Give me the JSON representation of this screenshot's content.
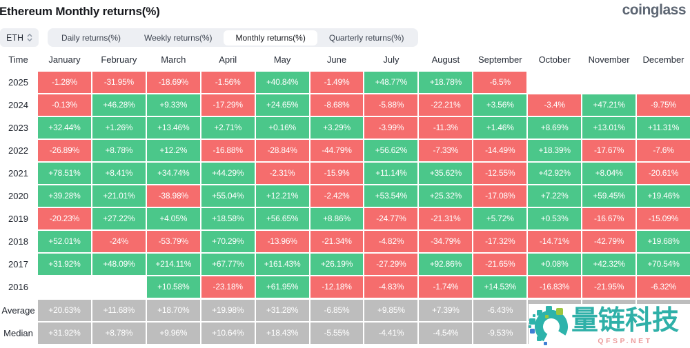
{
  "page": {
    "title": "Ethereum Monthly returns(%)",
    "brand": "coinglass"
  },
  "controls": {
    "symbol_select": {
      "value": "ETH"
    },
    "tabs": [
      {
        "label": "Daily returns(%)",
        "active": false
      },
      {
        "label": "Weekly returns(%)",
        "active": false
      },
      {
        "label": "Monthly returns(%)",
        "active": true
      },
      {
        "label": "Quarterly returns(%)",
        "active": false
      }
    ]
  },
  "chart_data": {
    "type": "heatmap",
    "title": "Ethereum Monthly returns(%)",
    "columns": [
      "Time",
      "January",
      "February",
      "March",
      "April",
      "May",
      "June",
      "July",
      "August",
      "September",
      "October",
      "November",
      "December"
    ],
    "colors": {
      "positive": "#4bc78a",
      "negative": "#f56d6d",
      "summary": "#bdbdbd"
    },
    "rows": [
      {
        "label": "2025",
        "kind": "year",
        "values": [
          "-1.28%",
          "-31.95%",
          "-18.69%",
          "-1.56%",
          "+40.84%",
          "-1.49%",
          "+48.77%",
          "+18.78%",
          "-6.5%",
          "",
          "",
          ""
        ]
      },
      {
        "label": "2024",
        "kind": "year",
        "values": [
          "-0.13%",
          "+46.28%",
          "+9.33%",
          "-17.29%",
          "+24.65%",
          "-8.68%",
          "-5.88%",
          "-22.21%",
          "+3.56%",
          "-3.4%",
          "+47.21%",
          "-9.75%"
        ]
      },
      {
        "label": "2023",
        "kind": "year",
        "values": [
          "+32.44%",
          "+1.26%",
          "+13.46%",
          "+2.71%",
          "+0.16%",
          "+3.29%",
          "-3.99%",
          "-11.3%",
          "+1.46%",
          "+8.69%",
          "+13.01%",
          "+11.31%"
        ]
      },
      {
        "label": "2022",
        "kind": "year",
        "values": [
          "-26.89%",
          "+8.78%",
          "+12.2%",
          "-16.88%",
          "-28.84%",
          "-44.79%",
          "+56.62%",
          "-7.33%",
          "-14.49%",
          "+18.39%",
          "-17.67%",
          "-7.6%"
        ]
      },
      {
        "label": "2021",
        "kind": "year",
        "values": [
          "+78.51%",
          "+8.41%",
          "+34.74%",
          "+44.29%",
          "-2.31%",
          "-15.9%",
          "+11.14%",
          "+35.62%",
          "-12.55%",
          "+42.92%",
          "+8.04%",
          "-20.61%"
        ]
      },
      {
        "label": "2020",
        "kind": "year",
        "values": [
          "+39.28%",
          "+21.01%",
          "-38.98%",
          "+55.04%",
          "+12.21%",
          "-2.42%",
          "+53.54%",
          "+25.32%",
          "-17.08%",
          "+7.22%",
          "+59.45%",
          "+19.46%"
        ]
      },
      {
        "label": "2019",
        "kind": "year",
        "values": [
          "-20.23%",
          "+27.22%",
          "+4.05%",
          "+18.58%",
          "+56.65%",
          "+8.86%",
          "-24.77%",
          "-21.31%",
          "+5.72%",
          "+0.53%",
          "-16.67%",
          "-15.09%"
        ]
      },
      {
        "label": "2018",
        "kind": "year",
        "values": [
          "+52.01%",
          "-24%",
          "-53.79%",
          "+70.29%",
          "-13.96%",
          "-21.34%",
          "-4.82%",
          "-34.79%",
          "-17.32%",
          "-14.71%",
          "-42.79%",
          "+19.68%"
        ]
      },
      {
        "label": "2017",
        "kind": "year",
        "values": [
          "+31.92%",
          "+48.09%",
          "+214.11%",
          "+67.77%",
          "+161.43%",
          "+26.19%",
          "-27.29%",
          "+92.86%",
          "-21.65%",
          "+0.08%",
          "+42.32%",
          "+70.54%"
        ]
      },
      {
        "label": "2016",
        "kind": "year",
        "values": [
          "",
          "",
          "+10.58%",
          "-23.18%",
          "+61.95%",
          "-12.18%",
          "-4.83%",
          "-1.74%",
          "+14.53%",
          "-16.83%",
          "-21.95%",
          "-6.32%"
        ]
      },
      {
        "label": "Average",
        "kind": "summary",
        "values": [
          "+20.63%",
          "+11.68%",
          "+18.70%",
          "+19.98%",
          "+31.28%",
          "-6.85%",
          "+9.85%",
          "+7.39%",
          "-6.43%",
          "",
          "",
          ""
        ]
      },
      {
        "label": "Median",
        "kind": "summary",
        "values": [
          "+31.92%",
          "+8.78%",
          "+9.96%",
          "+10.64%",
          "+18.43%",
          "-5.55%",
          "-4.41%",
          "-4.54%",
          "-9.53%",
          "",
          "",
          ""
        ]
      }
    ]
  },
  "watermark": {
    "text": "量链科技",
    "subtext": "QFSP.NET"
  }
}
